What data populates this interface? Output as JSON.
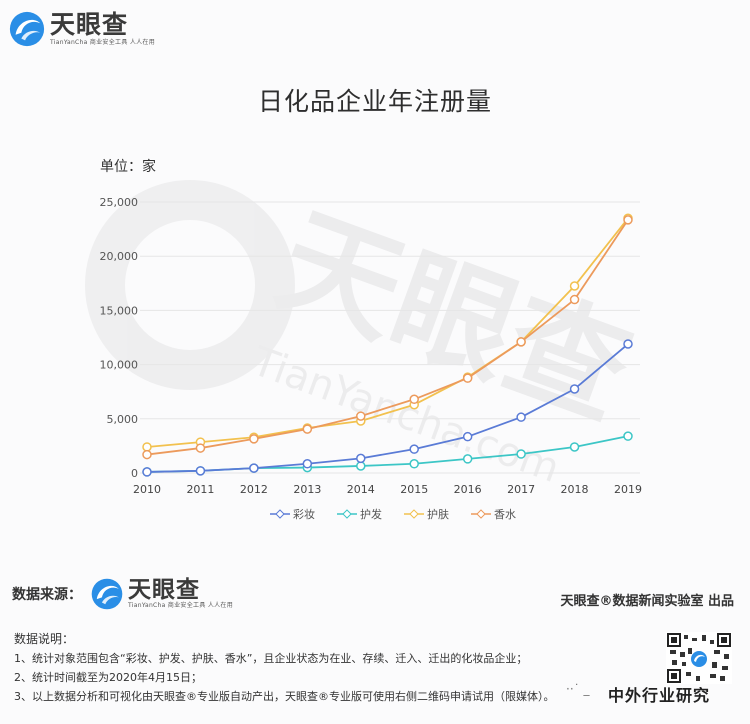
{
  "header": {
    "logo_name": "天眼查",
    "logo_sub": "TianYanCha 商业安全工具 人人在用"
  },
  "title": "日化品企业年注册量",
  "unit_label": "单位：家",
  "colors": {
    "makeup": "#5a7bd6",
    "haircare": "#3cc6c6",
    "skincare": "#f2c14e",
    "perfume": "#ec9a5c",
    "grid": "#e6e6e6"
  },
  "chart_data": {
    "type": "line",
    "title": "日化品企业年注册量",
    "ylabel": "单位：家",
    "xlabel": "",
    "x": [
      "2010",
      "2011",
      "2012",
      "2013",
      "2014",
      "2015",
      "2016",
      "2017",
      "2018",
      "2019"
    ],
    "ylim": [
      0,
      25000
    ],
    "yticks": [
      "0",
      "5,000",
      "10,000",
      "15,000",
      "20,000",
      "25,000"
    ],
    "grid": true,
    "legend_position": "bottom",
    "series": [
      {
        "name": "彩妆",
        "color": "#5a7bd6",
        "values": [
          100,
          200,
          450,
          850,
          1350,
          2200,
          3350,
          5150,
          7750,
          11900
        ]
      },
      {
        "name": "护发",
        "color": "#3cc6c6",
        "values": [
          100,
          200,
          450,
          500,
          650,
          850,
          1300,
          1750,
          2400,
          3400
        ]
      },
      {
        "name": "护肤",
        "color": "#f2c14e",
        "values": [
          2400,
          2850,
          3300,
          4150,
          4800,
          6300,
          8850,
          12100,
          17250,
          23500
        ]
      },
      {
        "name": "香水",
        "color": "#ec9a5c",
        "values": [
          1700,
          2300,
          3150,
          4050,
          5250,
          6800,
          8750,
          12100,
          16000,
          23350
        ]
      }
    ]
  },
  "legend": [
    "彩妆",
    "护发",
    "护肤",
    "香水"
  ],
  "footer": {
    "source_label": "数据来源：",
    "producer": "天眼查®数据新闻实验室 出品",
    "notes_title": "数据说明：",
    "notes": [
      "1、统计对象范围包含“彩妆、护发、护肤、香水”，且企业状态为在业、存续、迁入、迁出的化妆品企业；",
      "2、统计时间截至为2020年4月15日；",
      "3、以上数据分析和可视化由天眼查®专业版自动产出，天眼查®专业版可使用右侧二维码申请试用（限媒体）。"
    ],
    "watermark": "中外行业研究",
    "watermark_dots": "··˙ _"
  }
}
